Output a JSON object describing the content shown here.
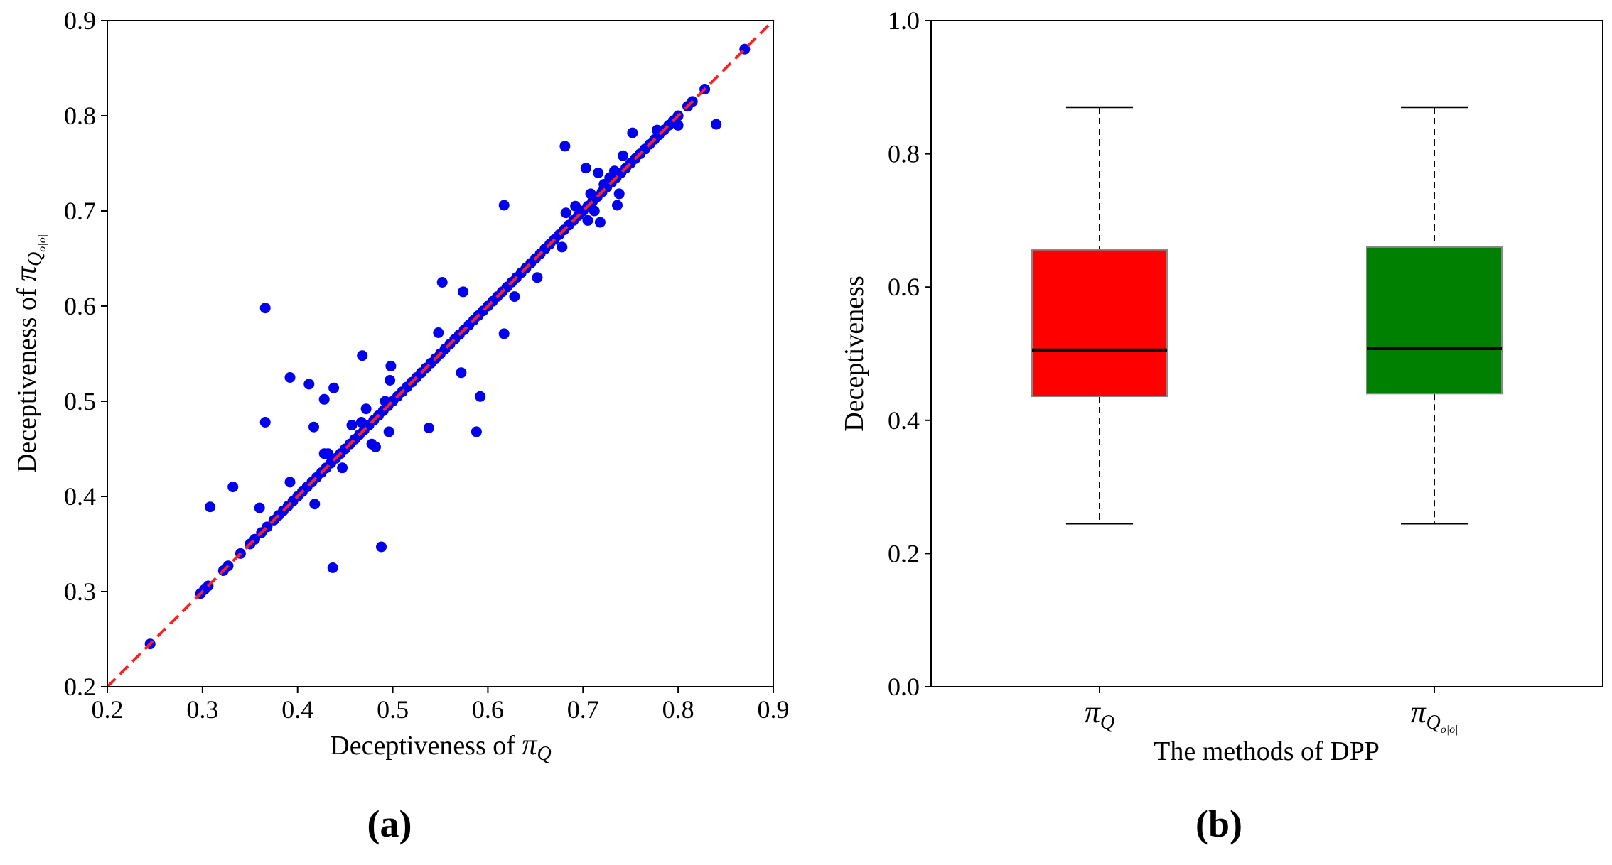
{
  "chart_data": [
    {
      "type": "scatter",
      "panel_label": "(a)",
      "xlabel": "Deceptiveness of",
      "xlabel_symbol": "π",
      "xlabel_sub": "Q",
      "ylabel": "Deceptiveness of",
      "ylabel_symbol": "π",
      "ylabel_sub": "Q",
      "ylabel_subsub": "o|o|",
      "xlim": [
        0.2,
        0.9
      ],
      "ylim": [
        0.2,
        0.9
      ],
      "xticks": [
        "0.2",
        "0.3",
        "0.4",
        "0.5",
        "0.6",
        "0.7",
        "0.8",
        "0.9"
      ],
      "yticks": [
        "0.2",
        "0.3",
        "0.4",
        "0.5",
        "0.6",
        "0.7",
        "0.8",
        "0.9"
      ],
      "reference_line": {
        "from": [
          0.2,
          0.2
        ],
        "to": [
          0.9,
          0.9
        ],
        "color": "#ff2020",
        "style": "dashed"
      },
      "point_color": "#0000ee",
      "points": [
        [
          0.245,
          0.245
        ],
        [
          0.298,
          0.298
        ],
        [
          0.302,
          0.302
        ],
        [
          0.306,
          0.306
        ],
        [
          0.308,
          0.389
        ],
        [
          0.322,
          0.322
        ],
        [
          0.327,
          0.327
        ],
        [
          0.332,
          0.41
        ],
        [
          0.34,
          0.34
        ],
        [
          0.35,
          0.35
        ],
        [
          0.355,
          0.355
        ],
        [
          0.36,
          0.388
        ],
        [
          0.362,
          0.362
        ],
        [
          0.366,
          0.598
        ],
        [
          0.366,
          0.478
        ],
        [
          0.368,
          0.368
        ],
        [
          0.375,
          0.375
        ],
        [
          0.38,
          0.38
        ],
        [
          0.385,
          0.385
        ],
        [
          0.39,
          0.39
        ],
        [
          0.392,
          0.525
        ],
        [
          0.392,
          0.415
        ],
        [
          0.395,
          0.395
        ],
        [
          0.4,
          0.4
        ],
        [
          0.405,
          0.405
        ],
        [
          0.41,
          0.41
        ],
        [
          0.412,
          0.518
        ],
        [
          0.415,
          0.415
        ],
        [
          0.417,
          0.473
        ],
        [
          0.418,
          0.392
        ],
        [
          0.42,
          0.42
        ],
        [
          0.425,
          0.425
        ],
        [
          0.428,
          0.502
        ],
        [
          0.428,
          0.445
        ],
        [
          0.43,
          0.43
        ],
        [
          0.432,
          0.445
        ],
        [
          0.435,
          0.435
        ],
        [
          0.437,
          0.325
        ],
        [
          0.438,
          0.514
        ],
        [
          0.44,
          0.44
        ],
        [
          0.445,
          0.445
        ],
        [
          0.447,
          0.43
        ],
        [
          0.45,
          0.45
        ],
        [
          0.455,
          0.455
        ],
        [
          0.457,
          0.475
        ],
        [
          0.46,
          0.46
        ],
        [
          0.465,
          0.465
        ],
        [
          0.467,
          0.478
        ],
        [
          0.468,
          0.548
        ],
        [
          0.47,
          0.47
        ],
        [
          0.472,
          0.492
        ],
        [
          0.475,
          0.475
        ],
        [
          0.478,
          0.455
        ],
        [
          0.48,
          0.48
        ],
        [
          0.482,
          0.452
        ],
        [
          0.485,
          0.485
        ],
        [
          0.488,
          0.347
        ],
        [
          0.49,
          0.49
        ],
        [
          0.492,
          0.5
        ],
        [
          0.495,
          0.495
        ],
        [
          0.496,
          0.468
        ],
        [
          0.497,
          0.522
        ],
        [
          0.498,
          0.537
        ],
        [
          0.5,
          0.5
        ],
        [
          0.505,
          0.505
        ],
        [
          0.51,
          0.51
        ],
        [
          0.515,
          0.515
        ],
        [
          0.52,
          0.52
        ],
        [
          0.525,
          0.525
        ],
        [
          0.53,
          0.53
        ],
        [
          0.535,
          0.535
        ],
        [
          0.538,
          0.472
        ],
        [
          0.54,
          0.54
        ],
        [
          0.545,
          0.545
        ],
        [
          0.548,
          0.572
        ],
        [
          0.55,
          0.55
        ],
        [
          0.552,
          0.625
        ],
        [
          0.555,
          0.555
        ],
        [
          0.56,
          0.56
        ],
        [
          0.565,
          0.565
        ],
        [
          0.57,
          0.57
        ],
        [
          0.572,
          0.53
        ],
        [
          0.574,
          0.615
        ],
        [
          0.575,
          0.575
        ],
        [
          0.58,
          0.58
        ],
        [
          0.585,
          0.585
        ],
        [
          0.588,
          0.468
        ],
        [
          0.59,
          0.59
        ],
        [
          0.592,
          0.505
        ],
        [
          0.595,
          0.595
        ],
        [
          0.6,
          0.6
        ],
        [
          0.605,
          0.605
        ],
        [
          0.61,
          0.61
        ],
        [
          0.615,
          0.615
        ],
        [
          0.617,
          0.706
        ],
        [
          0.617,
          0.571
        ],
        [
          0.62,
          0.62
        ],
        [
          0.625,
          0.625
        ],
        [
          0.628,
          0.61
        ],
        [
          0.63,
          0.63
        ],
        [
          0.635,
          0.635
        ],
        [
          0.64,
          0.64
        ],
        [
          0.645,
          0.645
        ],
        [
          0.65,
          0.65
        ],
        [
          0.652,
          0.63
        ],
        [
          0.655,
          0.655
        ],
        [
          0.66,
          0.66
        ],
        [
          0.665,
          0.665
        ],
        [
          0.67,
          0.67
        ],
        [
          0.675,
          0.675
        ],
        [
          0.678,
          0.662
        ],
        [
          0.68,
          0.68
        ],
        [
          0.681,
          0.768
        ],
        [
          0.682,
          0.698
        ],
        [
          0.685,
          0.685
        ],
        [
          0.69,
          0.69
        ],
        [
          0.692,
          0.705
        ],
        [
          0.695,
          0.695
        ],
        [
          0.7,
          0.7
        ],
        [
          0.703,
          0.745
        ],
        [
          0.705,
          0.69
        ],
        [
          0.705,
          0.705
        ],
        [
          0.708,
          0.718
        ],
        [
          0.71,
          0.71
        ],
        [
          0.712,
          0.7
        ],
        [
          0.715,
          0.715
        ],
        [
          0.716,
          0.74
        ],
        [
          0.718,
          0.688
        ],
        [
          0.72,
          0.72
        ],
        [
          0.722,
          0.728
        ],
        [
          0.725,
          0.725
        ],
        [
          0.728,
          0.735
        ],
        [
          0.73,
          0.73
        ],
        [
          0.733,
          0.742
        ],
        [
          0.735,
          0.735
        ],
        [
          0.736,
          0.706
        ],
        [
          0.738,
          0.718
        ],
        [
          0.74,
          0.74
        ],
        [
          0.742,
          0.758
        ],
        [
          0.745,
          0.745
        ],
        [
          0.75,
          0.75
        ],
        [
          0.752,
          0.782
        ],
        [
          0.755,
          0.755
        ],
        [
          0.76,
          0.76
        ],
        [
          0.765,
          0.765
        ],
        [
          0.77,
          0.77
        ],
        [
          0.775,
          0.775
        ],
        [
          0.778,
          0.785
        ],
        [
          0.78,
          0.78
        ],
        [
          0.785,
          0.785
        ],
        [
          0.79,
          0.79
        ],
        [
          0.795,
          0.795
        ],
        [
          0.8,
          0.8
        ],
        [
          0.8,
          0.79
        ],
        [
          0.81,
          0.81
        ],
        [
          0.815,
          0.815
        ],
        [
          0.828,
          0.828
        ],
        [
          0.84,
          0.791
        ],
        [
          0.87,
          0.87
        ]
      ]
    },
    {
      "type": "box",
      "panel_label": "(b)",
      "xlabel": "The methods of DPP",
      "ylabel": "Deceptiveness",
      "ylim": [
        0.0,
        1.0
      ],
      "yticks": [
        "0.0",
        "0.2",
        "0.4",
        "0.6",
        "0.8",
        "1.0"
      ],
      "boxes": [
        {
          "label_symbol": "π",
          "label_sub": "Q",
          "label_subsub": "",
          "whisker_low": 0.245,
          "q1": 0.436,
          "median": 0.505,
          "q3": 0.656,
          "whisker_high": 0.87,
          "color": "#ff0000"
        },
        {
          "label_symbol": "π",
          "label_sub": "Q",
          "label_subsub": "o|o|",
          "whisker_low": 0.245,
          "q1": 0.44,
          "median": 0.508,
          "q3": 0.66,
          "whisker_high": 0.87,
          "color": "#008000"
        }
      ]
    }
  ]
}
